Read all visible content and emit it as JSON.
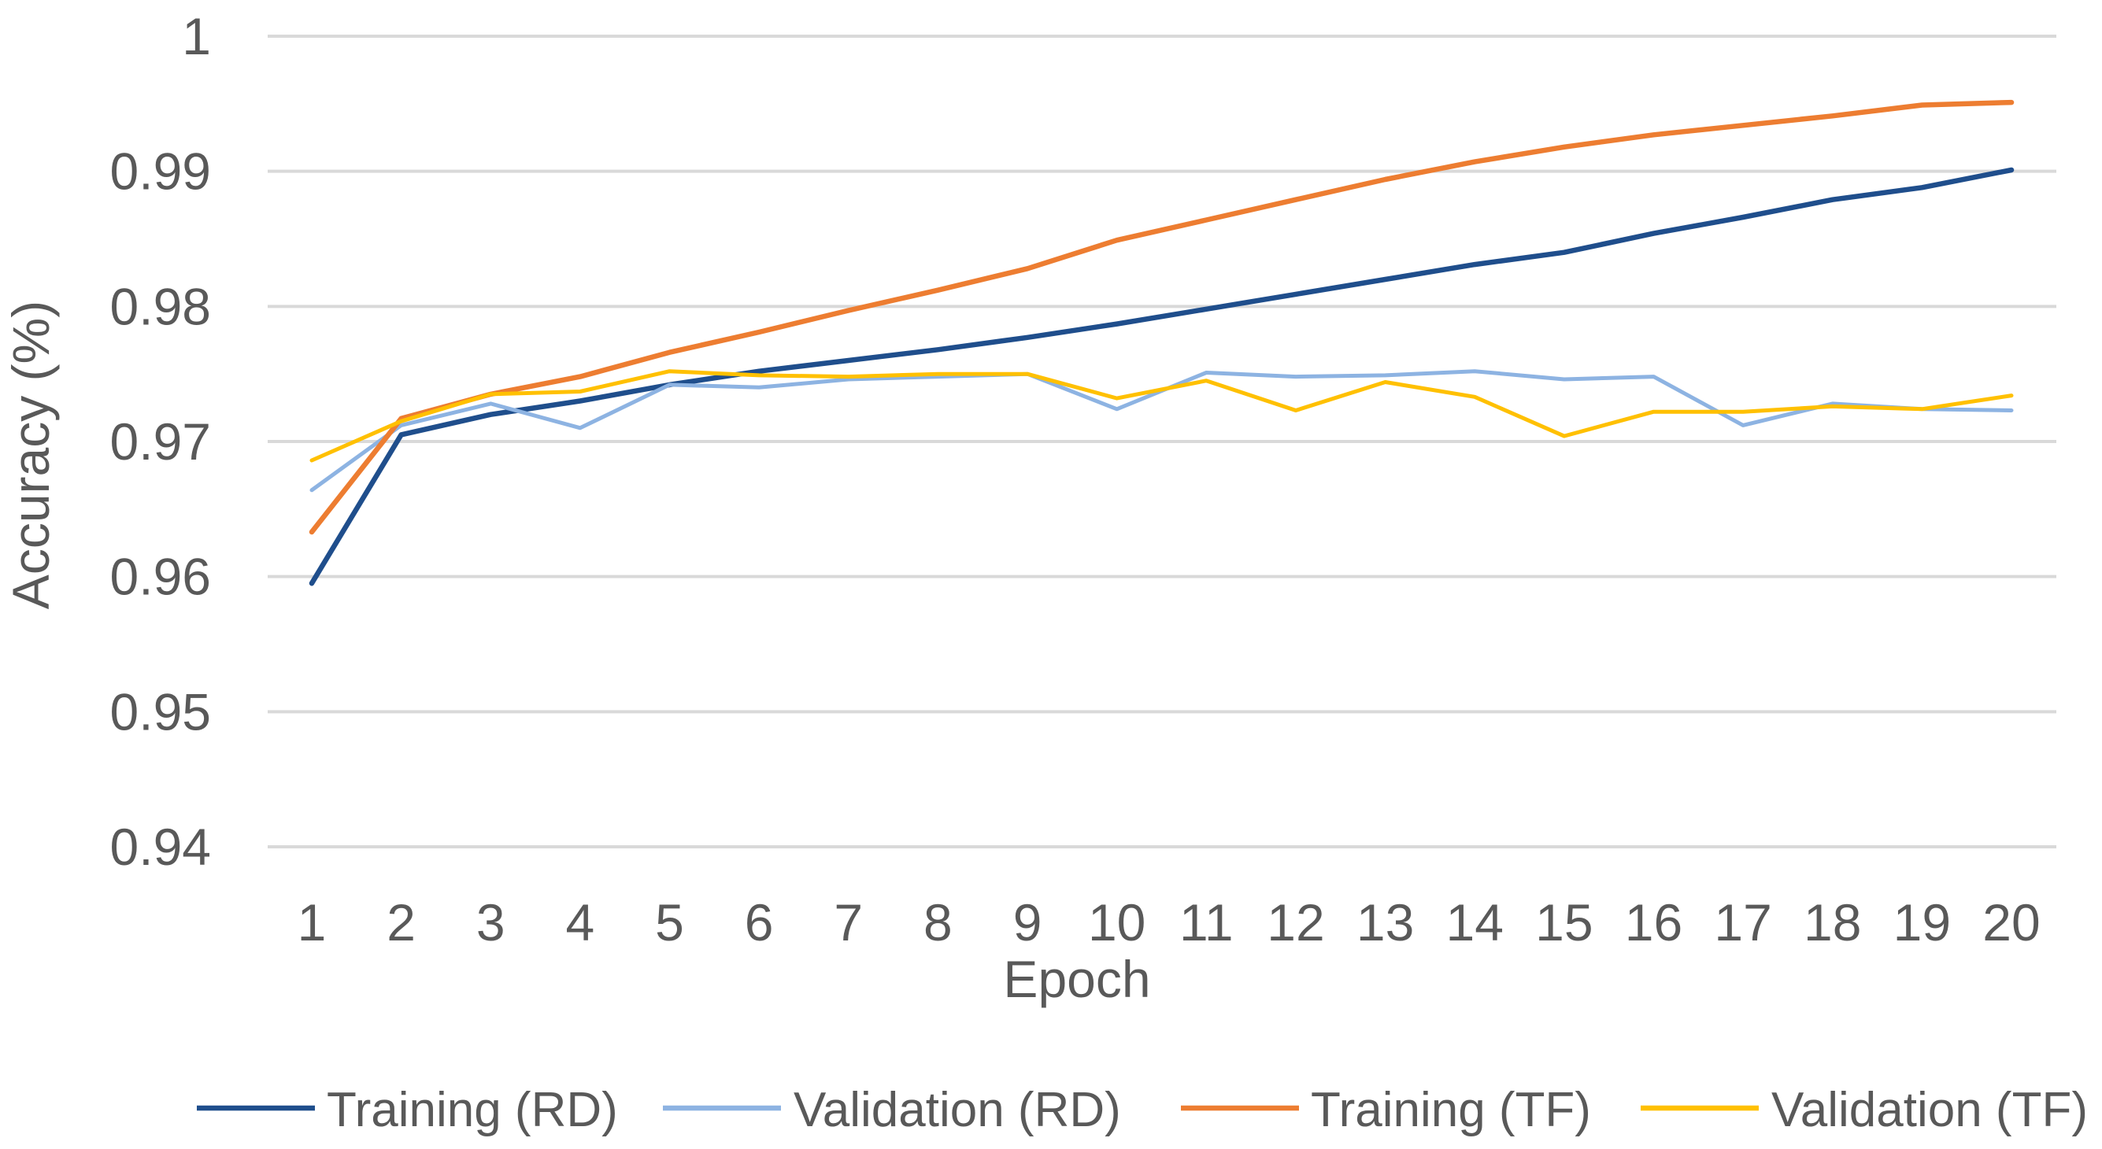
{
  "chart_data": {
    "type": "line",
    "title": "",
    "xlabel": "Epoch",
    "ylabel": "Accuracy (%)",
    "ylim": [
      0.94,
      1.0
    ],
    "yticks": [
      0.94,
      0.95,
      0.96,
      0.97,
      0.98,
      0.99,
      1
    ],
    "ytick_labels": [
      "0.94",
      "0.95",
      "0.96",
      "0.97",
      "0.98",
      "0.99",
      "1"
    ],
    "categories": [
      "1",
      "2",
      "3",
      "4",
      "5",
      "6",
      "7",
      "8",
      "9",
      "10",
      "11",
      "12",
      "13",
      "14",
      "15",
      "16",
      "17",
      "18",
      "19",
      "20"
    ],
    "grid": true,
    "legend_position": "bottom",
    "series": [
      {
        "name": "Training (RD)",
        "color": "#1f4e8c",
        "values": [
          0.9595,
          0.9705,
          0.972,
          0.973,
          0.9742,
          0.9752,
          0.976,
          0.9768,
          0.9777,
          0.9787,
          0.9798,
          0.9809,
          0.982,
          0.9831,
          0.984,
          0.9854,
          0.9866,
          0.9879,
          0.9888,
          0.9901
        ]
      },
      {
        "name": "Validation (RD)",
        "color": "#8db3e2",
        "values": [
          0.9664,
          0.9712,
          0.9728,
          0.971,
          0.9742,
          0.974,
          0.9746,
          0.9748,
          0.975,
          0.9724,
          0.9751,
          0.9748,
          0.9749,
          0.9752,
          0.9746,
          0.9748,
          0.9712,
          0.9728,
          0.9724,
          0.9723
        ]
      },
      {
        "name": "Training (TF)",
        "color": "#ed7d31",
        "values": [
          0.9633,
          0.9717,
          0.9735,
          0.9748,
          0.9766,
          0.9781,
          0.9797,
          0.9812,
          0.9828,
          0.9849,
          0.9864,
          0.9879,
          0.9894,
          0.9907,
          0.9918,
          0.9927,
          0.9934,
          0.9941,
          0.9949,
          0.9951
        ]
      },
      {
        "name": "Validation (TF)",
        "color": "#ffc000",
        "values": [
          0.9686,
          0.9715,
          0.9735,
          0.9737,
          0.9752,
          0.9749,
          0.9748,
          0.975,
          0.975,
          0.9732,
          0.9745,
          0.9723,
          0.9744,
          0.9733,
          0.9704,
          0.9722,
          0.9722,
          0.9726,
          0.9724,
          0.9734
        ]
      }
    ]
  }
}
